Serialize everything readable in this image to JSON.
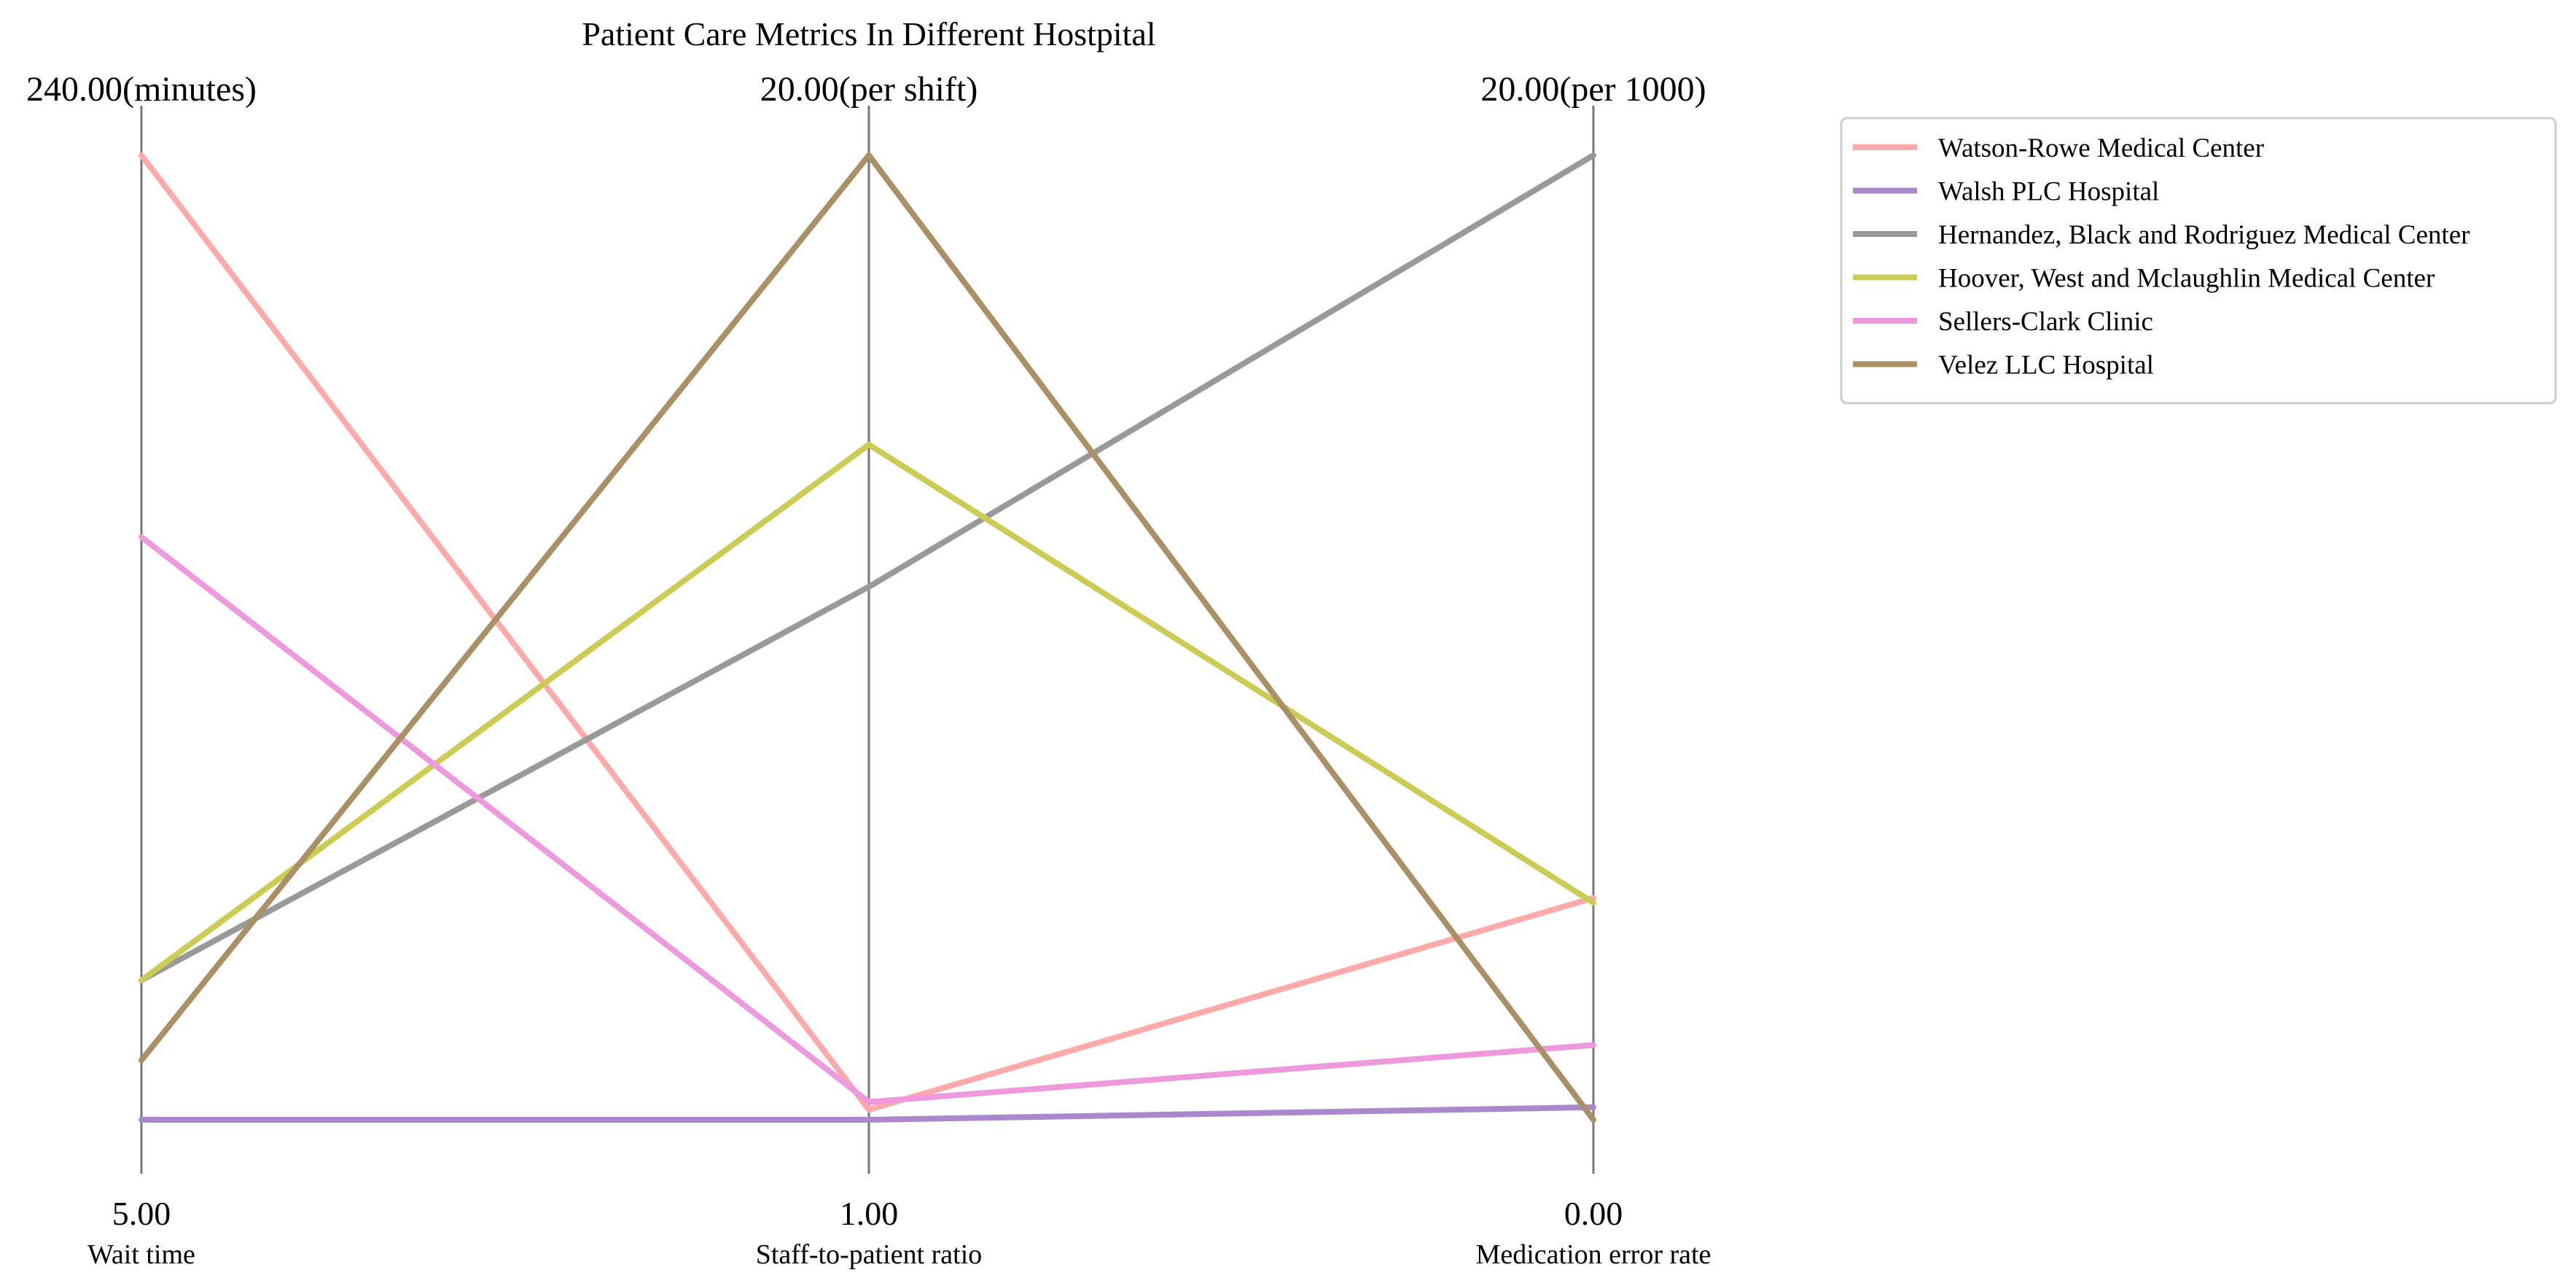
{
  "chart_data": {
    "type": "parallel_coordinates",
    "title": "Patient Care Metrics In Different Hostpital",
    "axes": [
      {
        "name": "Wait time",
        "min": 5.0,
        "max": 240.0,
        "min_label": "5.00",
        "max_label": "240.00(minutes)"
      },
      {
        "name": "Staff-to-patient ratio",
        "min": 1.0,
        "max": 20.0,
        "min_label": "1.00",
        "max_label": "20.00(per shift)"
      },
      {
        "name": "Medication error rate",
        "min": 0.0,
        "max": 20.0,
        "min_label": "0.00",
        "max_label": "20.00(per 1000)"
      }
    ],
    "series": [
      {
        "name": "Watson-Rowe  Medical Center",
        "color": "#ffaaaa",
        "values": [
          240.0,
          1.2,
          4.6
        ]
      },
      {
        "name": "Walsh PLC  Hospital",
        "color": "#aa88cc",
        "values": [
          5.0,
          1.0,
          0.26
        ]
      },
      {
        "name": "Hernandez, Black and Rodriguez  Medical Center",
        "color": "#999999",
        "values": [
          39.0,
          11.5,
          20.0
        ]
      },
      {
        "name": "Hoover, West and Mclaughlin  Medical Center",
        "color": "#cccc55",
        "values": [
          39.0,
          14.3,
          4.5
        ]
      },
      {
        "name": "Sellers-Clark  Clinic",
        "color": "#ee99dd",
        "values": [
          147.0,
          1.35,
          1.55
        ]
      },
      {
        "name": "Velez LLC  Hospital",
        "color": "#aa9066",
        "values": [
          19.5,
          20.0,
          0.0
        ]
      }
    ],
    "legend_position": "top-right",
    "grid": false
  }
}
